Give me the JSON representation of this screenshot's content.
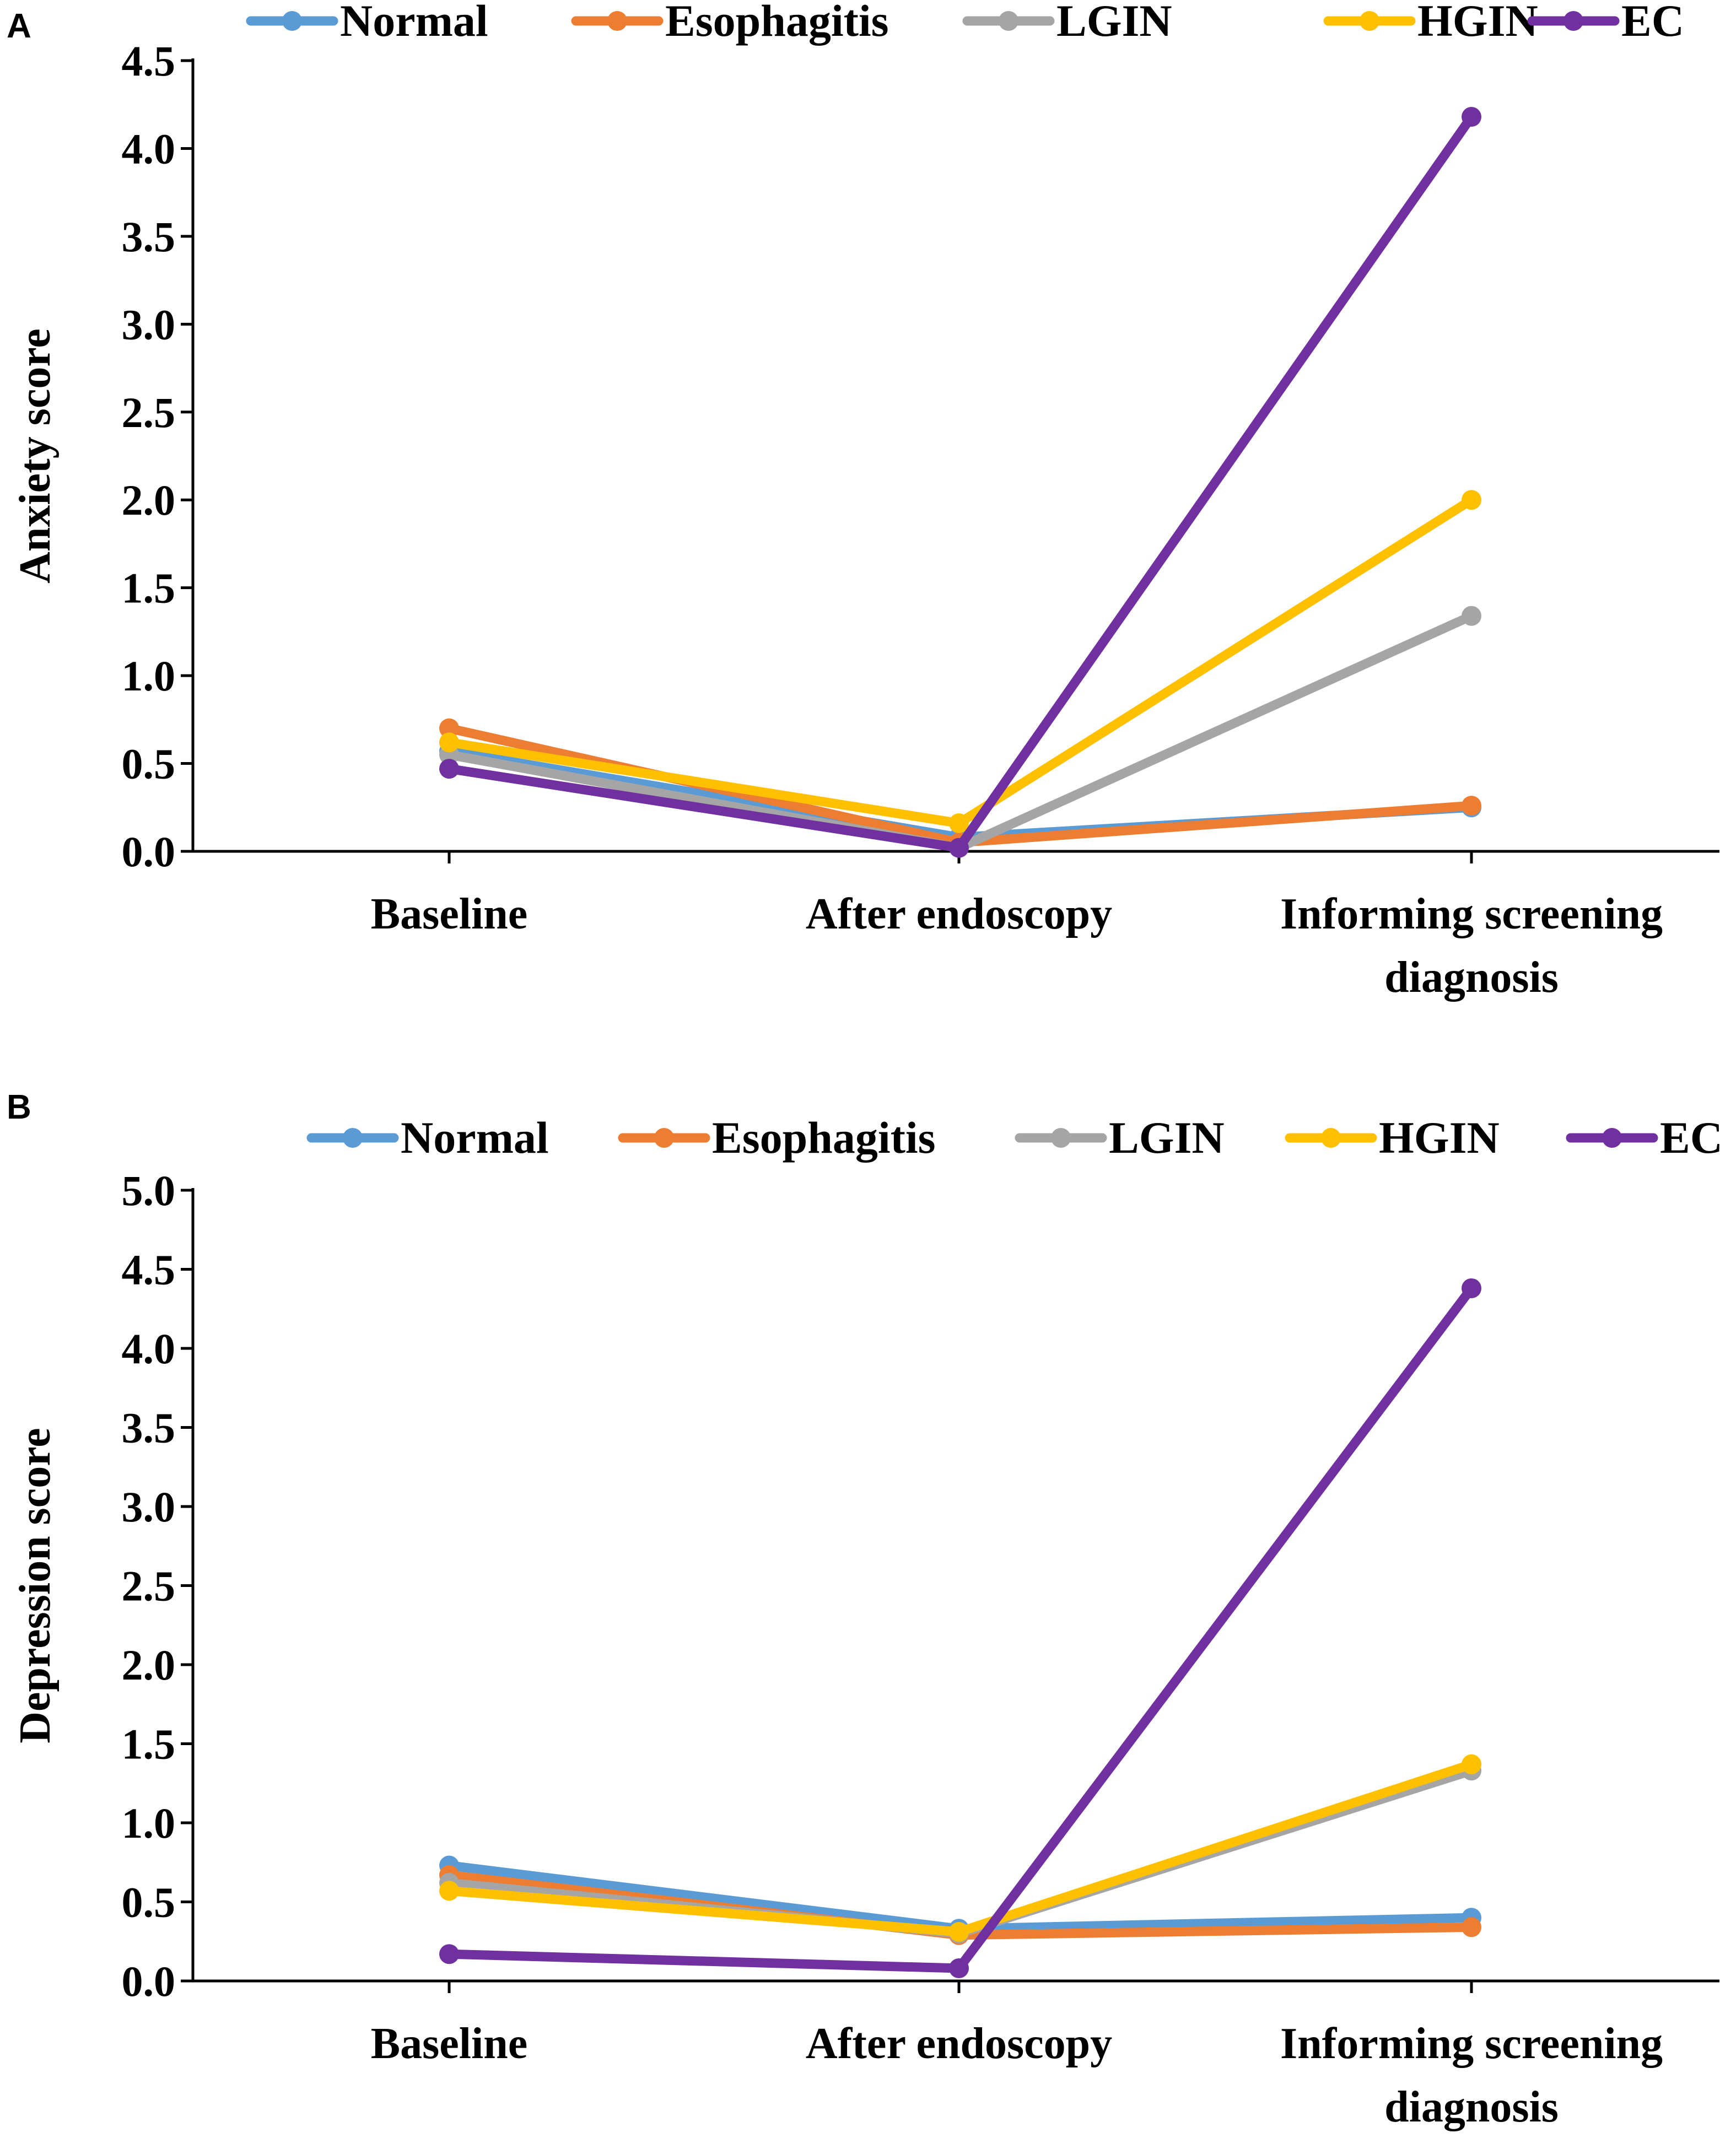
{
  "colors": {
    "Normal": "#5B9BD5",
    "Esophagitis": "#ED7D31",
    "LGIN": "#A5A5A5",
    "HGIN": "#FFC000",
    "EC": "#7030A0"
  },
  "chart_data": [
    {
      "panel": "A",
      "type": "line",
      "title": "",
      "xlabel": "",
      "ylabel": "Anxiety score",
      "ylim": [
        0,
        4.5
      ],
      "yticks": [
        "0.0",
        "0.5",
        "1.0",
        "1.5",
        "2.0",
        "2.5",
        "3.0",
        "3.5",
        "4.0",
        "4.5"
      ],
      "categories": [
        "Baseline",
        "After endoscopy",
        "Informing screening|diagnosis"
      ],
      "legend": "top",
      "series": [
        {
          "name": "Normal",
          "values": [
            0.57,
            0.08,
            0.25
          ]
        },
        {
          "name": "Esophagitis",
          "values": [
            0.7,
            0.05,
            0.26
          ]
        },
        {
          "name": "LGIN",
          "values": [
            0.55,
            0.02,
            1.34
          ]
        },
        {
          "name": "HGIN",
          "values": [
            0.62,
            0.16,
            2.0
          ]
        },
        {
          "name": "EC",
          "values": [
            0.47,
            0.02,
            4.18
          ]
        }
      ]
    },
    {
      "panel": "B",
      "type": "line",
      "title": "",
      "xlabel": "",
      "ylabel": "Depression score",
      "ylim": [
        0,
        5.0
      ],
      "yticks": [
        "0.0",
        "0.5",
        "1.0",
        "1.5",
        "2.0",
        "2.5",
        "3.0",
        "3.5",
        "4.0",
        "4.5",
        "5.0"
      ],
      "categories": [
        "Baseline",
        "After endoscopy",
        "Informing screening|diagnosis"
      ],
      "legend": "top",
      "series": [
        {
          "name": "Normal",
          "values": [
            0.73,
            0.33,
            0.4
          ]
        },
        {
          "name": "Esophagitis",
          "values": [
            0.67,
            0.29,
            0.34
          ]
        },
        {
          "name": "LGIN",
          "values": [
            0.62,
            0.3,
            1.33
          ]
        },
        {
          "name": "HGIN",
          "values": [
            0.57,
            0.31,
            1.37
          ]
        },
        {
          "name": "EC",
          "values": [
            0.17,
            0.08,
            4.38
          ]
        }
      ]
    }
  ]
}
